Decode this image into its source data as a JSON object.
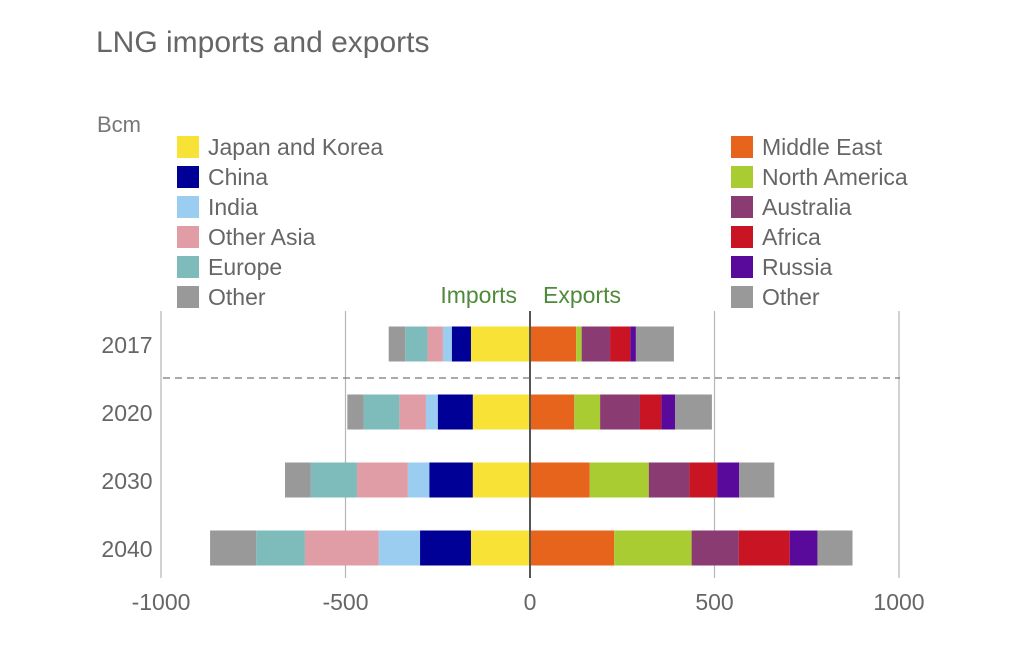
{
  "chart_data": {
    "type": "bar",
    "orientation": "horizontal",
    "stacked": "diverging",
    "title": "LNG imports and exports",
    "unit_label": "Bcm",
    "categories": [
      "2017",
      "2020",
      "2030",
      "2040"
    ],
    "center_labels": {
      "left": "Imports",
      "right": "Exports"
    },
    "xlim": [
      -1000,
      1000
    ],
    "xticks": [
      -1000,
      -500,
      0,
      500,
      1000
    ],
    "grid": "vertical",
    "legend_placement": "top, split left/right",
    "imports": [
      {
        "name": "Japan and Korea",
        "color": "#f7e235",
        "values": [
          160,
          155,
          155,
          160
        ]
      },
      {
        "name": "China",
        "color": "#000096",
        "values": [
          52,
          95,
          118,
          138
        ]
      },
      {
        "name": "India",
        "color": "#9bcdf0",
        "values": [
          24,
          32,
          58,
          112
        ]
      },
      {
        "name": "Other Asia",
        "color": "#e09da5",
        "values": [
          42,
          72,
          138,
          200
        ]
      },
      {
        "name": "Europe",
        "color": "#7dbcbb",
        "values": [
          60,
          97,
          125,
          132
        ]
      },
      {
        "name": "Other",
        "color": "#999999",
        "values": [
          45,
          44,
          70,
          125
        ]
      }
    ],
    "exports": [
      {
        "name": "Middle East",
        "color": "#e6641c",
        "values": [
          125,
          120,
          162,
          228
        ]
      },
      {
        "name": "North America",
        "color": "#a8cc32",
        "values": [
          15,
          70,
          160,
          210
        ]
      },
      {
        "name": "Australia",
        "color": "#8a3b71",
        "values": [
          77,
          108,
          110,
          128
        ]
      },
      {
        "name": "Africa",
        "color": "#c81423",
        "values": [
          55,
          58,
          75,
          138
        ]
      },
      {
        "name": "Russia",
        "color": "#5a0a9b",
        "values": [
          15,
          37,
          60,
          75
        ]
      },
      {
        "name": "Other",
        "color": "#999999",
        "values": [
          103,
          100,
          95,
          95
        ]
      }
    ]
  }
}
